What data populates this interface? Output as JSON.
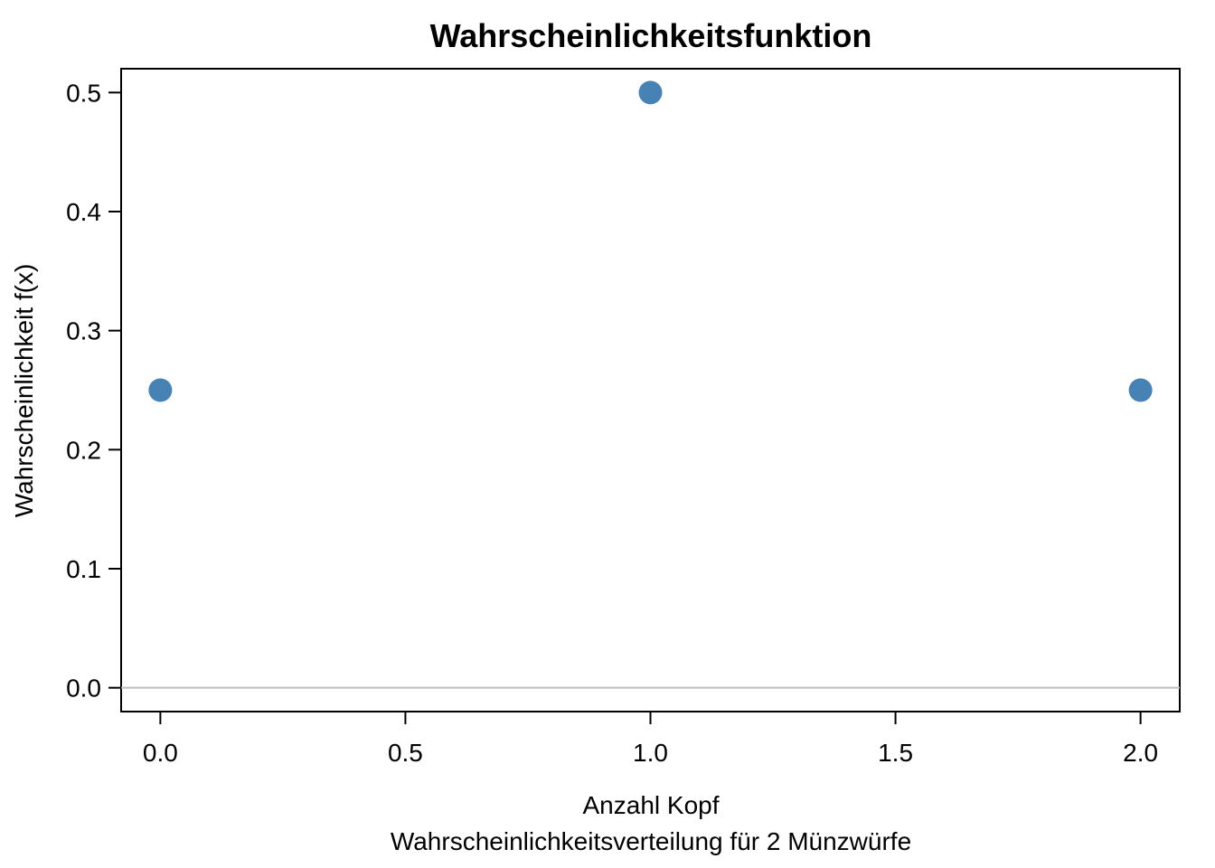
{
  "chart_data": {
    "type": "scatter",
    "title": "Wahrscheinlichkeitsfunktion",
    "xlabel": "Anzahl Kopf",
    "subtitle": "Wahrscheinlichkeitsverteilung für 2 Münzwürfe",
    "ylabel": "Wahrscheinlichkeit f(x)",
    "x_ticks": [
      "0.0",
      "0.5",
      "1.0",
      "1.5",
      "2.0"
    ],
    "y_ticks": [
      "0.0",
      "0.1",
      "0.2",
      "0.3",
      "0.4",
      "0.5"
    ],
    "xlim": [
      -0.08,
      2.08
    ],
    "ylim": [
      -0.02,
      0.52
    ],
    "points": [
      {
        "x": 0,
        "y": 0.25
      },
      {
        "x": 1,
        "y": 0.5
      },
      {
        "x": 2,
        "y": 0.25
      }
    ],
    "point_color": "#4682B4",
    "reference_line_y": 0,
    "reference_line_color": "#BEBEBE"
  }
}
